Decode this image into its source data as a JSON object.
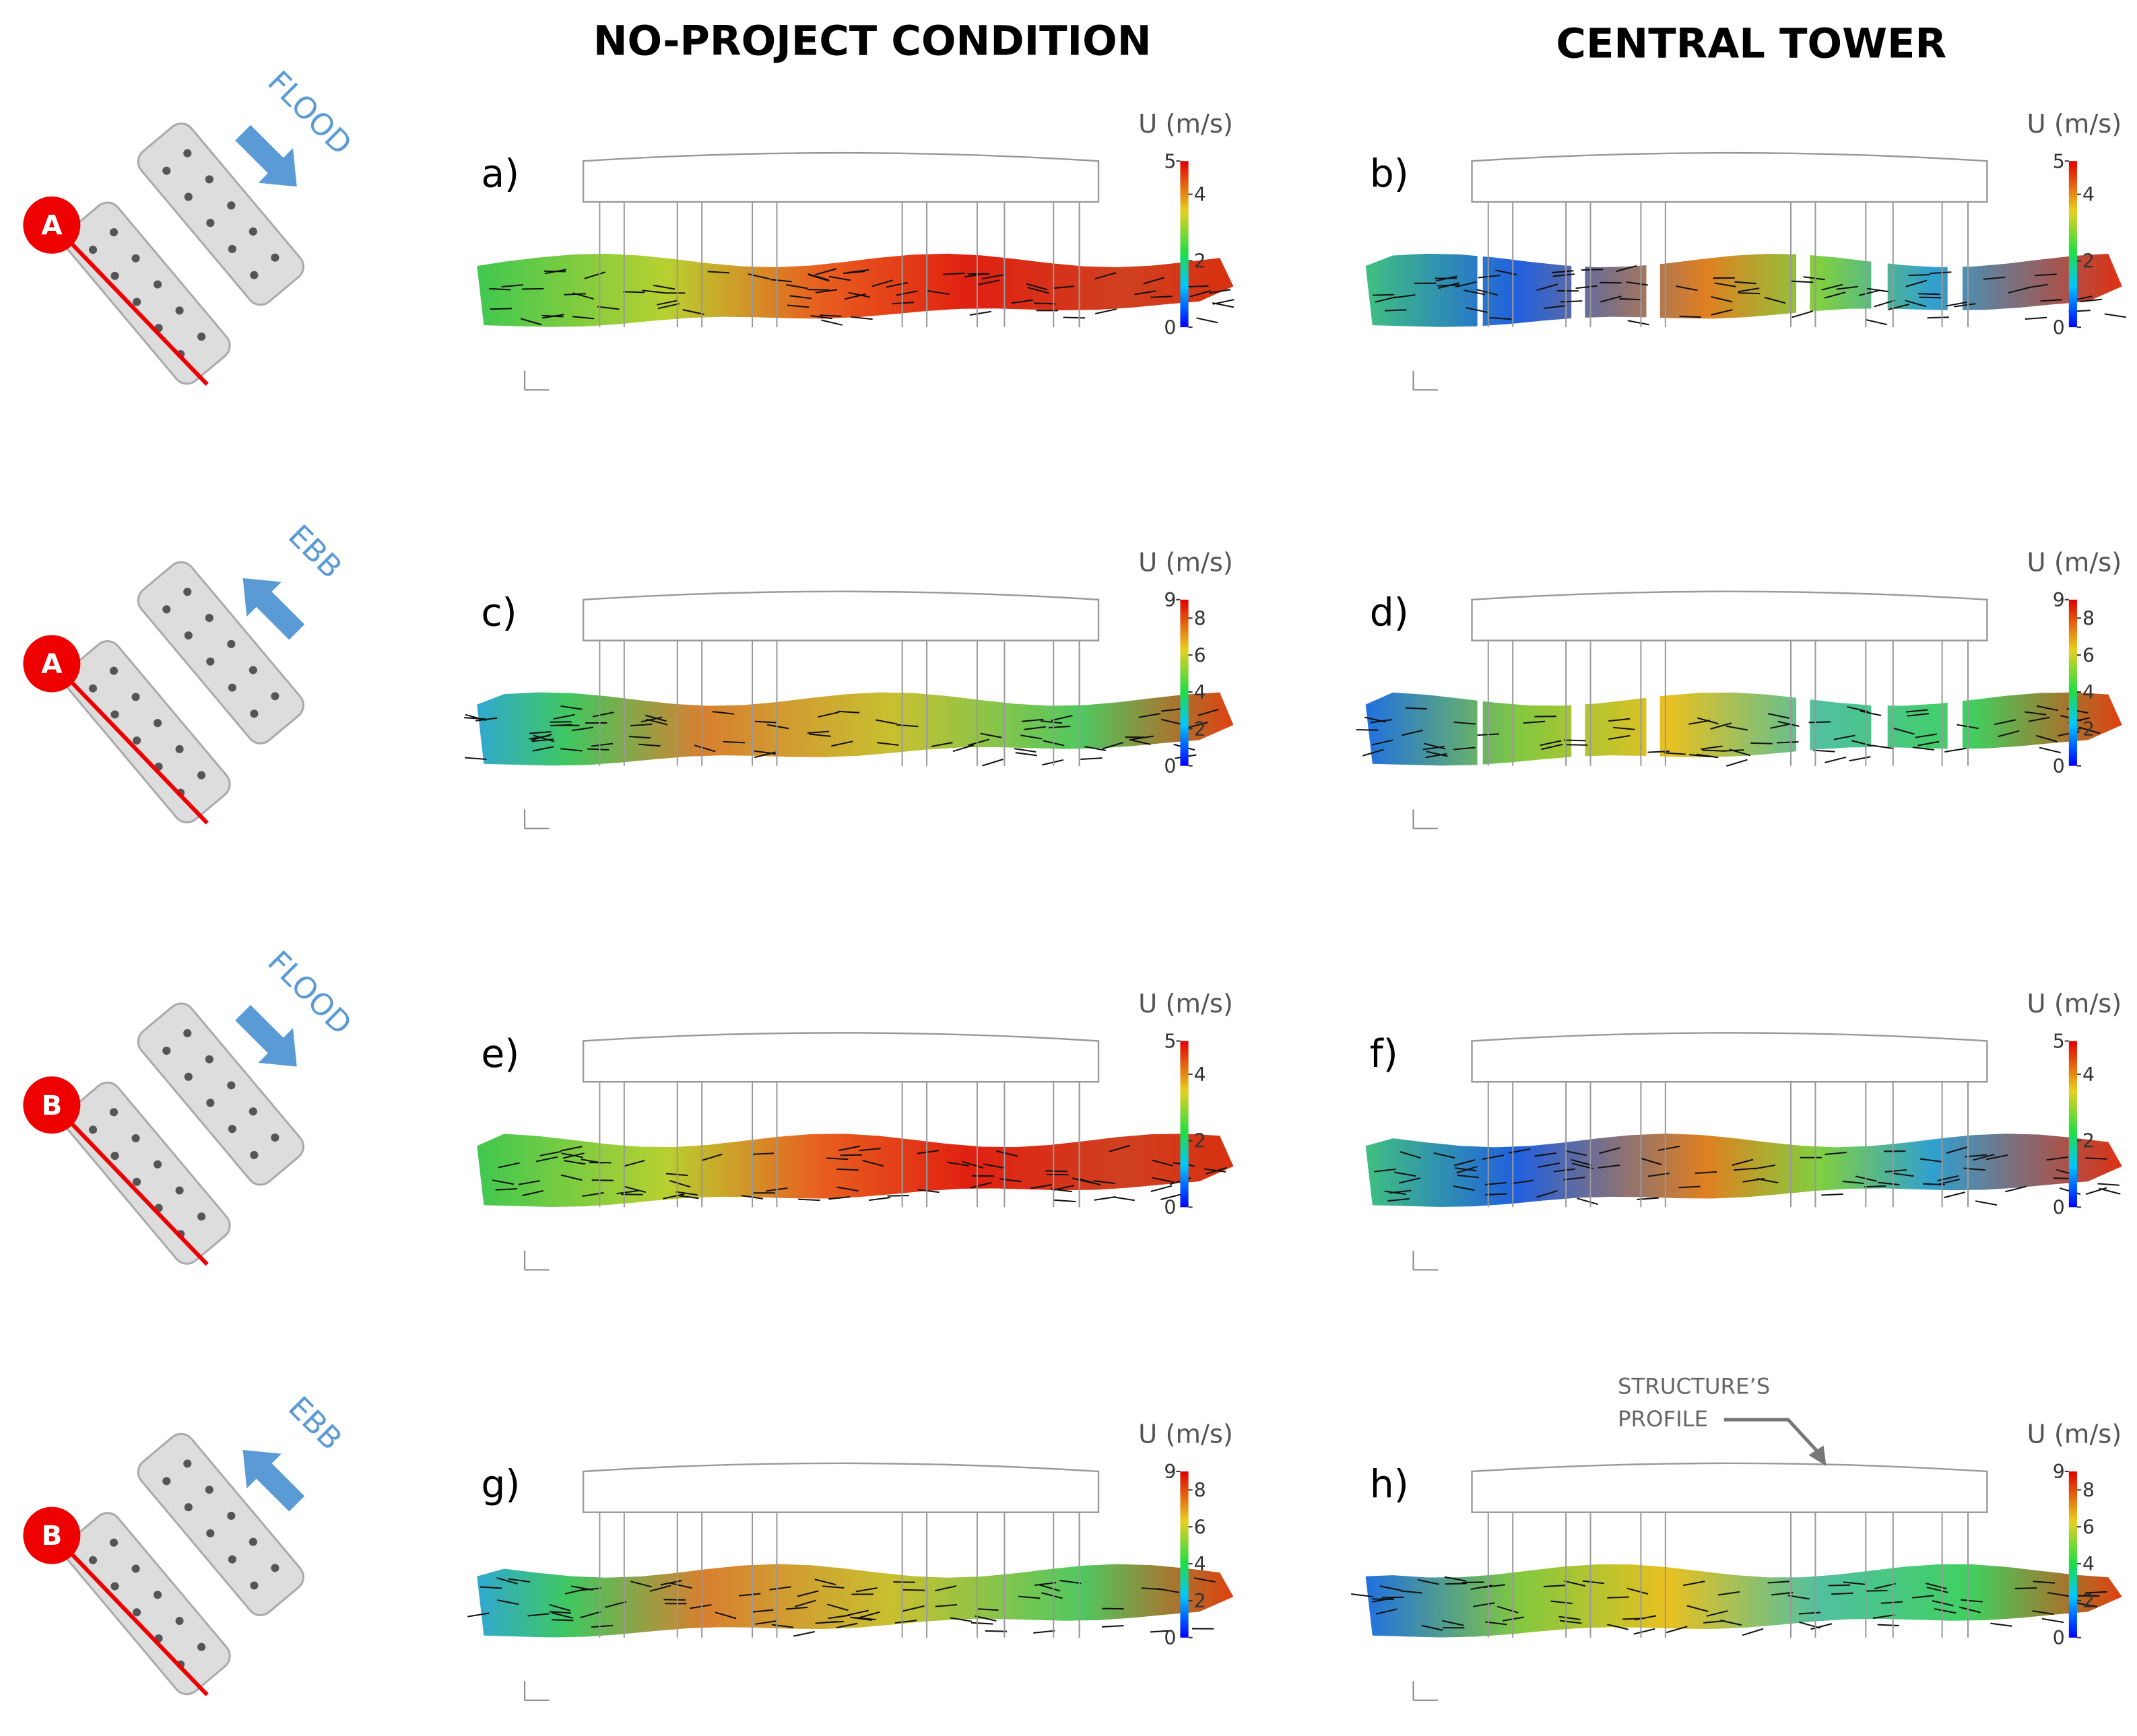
{
  "columns": [
    "NO-PROJECT CONDITION",
    "CENTRAL TOWER"
  ],
  "rows": [
    {
      "flow": "FLOOD",
      "section": "A",
      "panels": [
        {
          "label": "a)",
          "colorbar": {
            "title": "U (m/s)",
            "ticks": [
              0,
              2,
              4
            ],
            "max": 5
          }
        },
        {
          "label": "b)",
          "colorbar": {
            "title": "U (m/s)",
            "ticks": [
              0,
              2,
              4
            ],
            "max": 5
          }
        }
      ]
    },
    {
      "flow": "EBB",
      "section": "A",
      "panels": [
        {
          "label": "c)",
          "colorbar": {
            "title": "U (m/s)",
            "ticks": [
              0,
              2,
              4,
              6,
              8
            ],
            "max": 9
          }
        },
        {
          "label": "d)",
          "colorbar": {
            "title": "U (m/s)",
            "ticks": [
              0,
              2,
              4,
              6,
              8
            ],
            "max": 9
          }
        }
      ]
    },
    {
      "flow": "FLOOD",
      "section": "B",
      "panels": [
        {
          "label": "e)",
          "colorbar": {
            "title": "U (m/s)",
            "ticks": [
              0,
              2,
              4
            ],
            "max": 5
          }
        },
        {
          "label": "f)",
          "colorbar": {
            "title": "U (m/s)",
            "ticks": [
              0,
              2,
              4
            ],
            "max": 5
          }
        }
      ]
    },
    {
      "flow": "EBB",
      "section": "B",
      "panels": [
        {
          "label": "g)",
          "colorbar": {
            "title": "U (m/s)",
            "ticks": [
              0,
              2,
              4,
              6,
              8
            ],
            "max": 9
          }
        },
        {
          "label": "h)",
          "colorbar": {
            "title": "U (m/s)",
            "ticks": [
              0,
              2,
              4,
              6,
              8
            ],
            "max": 9
          }
        }
      ]
    }
  ],
  "annotation": {
    "lines": [
      "STRUCTURE’S",
      "PROFILE"
    ]
  }
}
